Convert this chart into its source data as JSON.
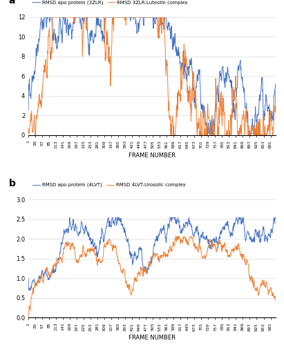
{
  "n_frames": 1001,
  "panel_a": {
    "title": "a",
    "legend_apo": "RMSD apo protein (3ZLR)",
    "legend_complex": "RMSD 3ZLR-Luteolin complex",
    "color_apo": "#4472C4",
    "color_complex": "#ED7D31",
    "ylim": [
      0,
      12
    ],
    "yticks": [
      0,
      2,
      4,
      6,
      8,
      10,
      12
    ],
    "xlabel": "FRAME NUMBER",
    "linewidth": 0.7
  },
  "panel_b": {
    "title": "b",
    "legend_apo": "RMSD apo protein (4LVT)",
    "legend_complex": "RMSD 4LVT-Urosolic complex",
    "color_apo": "#4472C4",
    "color_complex": "#ED7D31",
    "ylim": [
      0,
      3
    ],
    "yticks": [
      0,
      0.5,
      1,
      1.5,
      2,
      2.5,
      3
    ],
    "xlabel": "FRAME NUMBER",
    "linewidth": 0.7
  },
  "xtick_step": 28,
  "background_color": "#FFFFFF",
  "grid_color": "#D9D9D9"
}
